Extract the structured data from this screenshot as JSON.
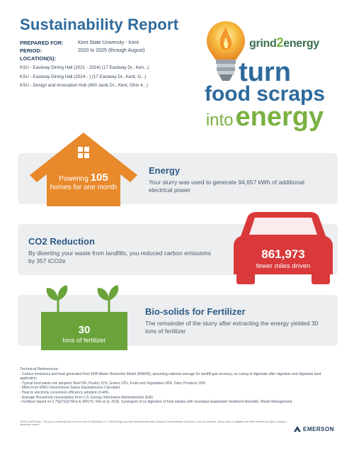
{
  "header": {
    "title": "Sustainability Report",
    "prepared_for_label": "PREPARED FOR:",
    "prepared_for_value": "Kent State University - Kent",
    "period_label": "PERIOD:",
    "period_value": "2020 to 2025 (through August)",
    "locations_label": "LOCATION(S):",
    "locations": [
      "KSU - Eastway Dining Hall (2021 - 2024) (17 Eastway Dr., Ken...)",
      "KSU - Eastway Dining Hall (2024 - ) (17 Eastway Dr., Kent, O...)",
      "KSU - Design and Innovation Hub (400 Janik Dr., Kent, Ohio 4...)"
    ]
  },
  "brand": {
    "name_part1": "grind",
    "name_part2": "2",
    "name_part3": "energy",
    "slogan_l1": "turn",
    "slogan_l2": "food scraps",
    "slogan_into": "into",
    "slogan_energy": "energy"
  },
  "energy": {
    "heading": "Energy",
    "description": "Your slurry was used to generate 94,657 kWh of additional electrical power",
    "icon_line1_prefix": "Powering",
    "icon_number": "105",
    "icon_line2": "homes for one month"
  },
  "co2": {
    "heading": "CO2 Reduction",
    "description": "By diverting your waste from landfills, you reduced carbon emissions by 357 tCO2e",
    "icon_number": "861,973",
    "icon_label": "fewer miles driven"
  },
  "biosolids": {
    "heading": "Bio-solids for Fertilizer",
    "description": "The remainder of the slurry after extracting the energy yielded 30 tons of fertilizer",
    "icon_number": "30",
    "icon_label": "tons of fertilizer"
  },
  "references": {
    "title": "Technical References:",
    "lines": [
      "- Carbon emissions and heat generated from EPA Waste Reduction Model (WARM), assuming national average for landfill gas recovery, no curing of digestate after digestion and digestate land application",
      "- Typical food waste mix adopted: Beef 9%, Poultry 11%, Grains 13%, Fruits and Vegetables 49%, Dairy Products 18%",
      "- Miles from EPA's Greenhouse Gases Equivalencies Calculator",
      "- Heat to electricity conversion efficiency adopted of 44%",
      "- Average Household consumption from U.S. Energy Information Administration (EIA)",
      "- Fertilizer based on 0.79gTS/gTSFw & 30%TS. Kim et al. 2016. Synergism of co-digestion of food wastes with municipal wastewater treatment biosolids. Waste Management."
    ]
  },
  "footer": {
    "legal": "©2025 Grind2Energy - This logo is a trademark and a service mark of InSinkErator LLC. Grind2Energy may make improvements and/or changes in the specification at any time, in its sole discretion, without notice or obligation and further reserves the right to change or discontinue models.",
    "company": "EMERSON"
  },
  "colors": {
    "title_blue": "#2e6a9c",
    "house_orange": "#e8892b",
    "car_red": "#d9393a",
    "soil_green": "#6aa33a",
    "panel_gray": "#eceef0"
  }
}
